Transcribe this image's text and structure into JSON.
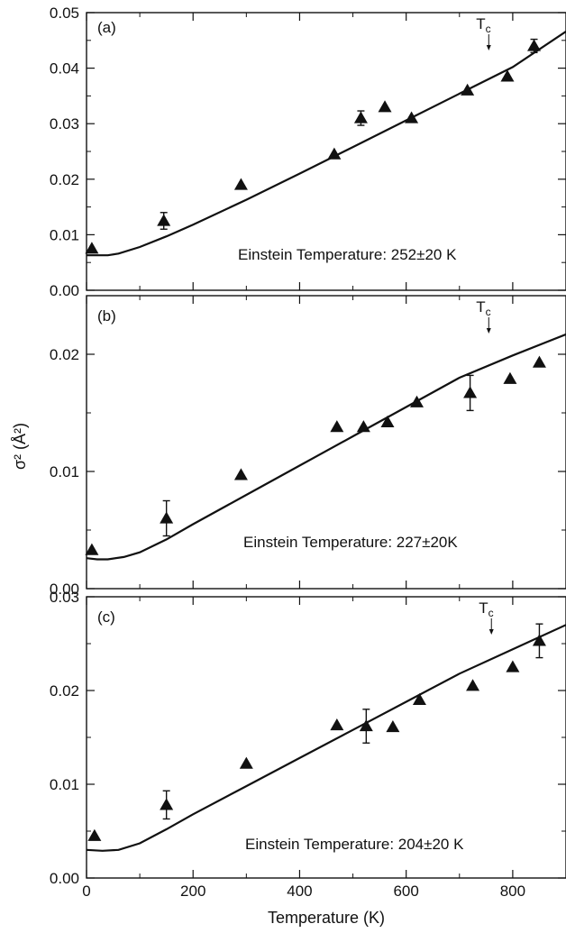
{
  "figure": {
    "xlabel": "Temperature (K)",
    "ylabel": "σ² (Å²)"
  },
  "chart_data": [
    {
      "type": "scatter",
      "panel_label": "(a)",
      "annotation": "Einstein Temperature: 252±20 K",
      "marker_label": "T",
      "marker_sub": "c",
      "marker_x": 755,
      "xlim": [
        0,
        900
      ],
      "ylim": [
        0,
        0.05
      ],
      "x_ticks": [
        0,
        200,
        400,
        600,
        800
      ],
      "y_ticks": [
        0.0,
        0.01,
        0.02,
        0.03,
        0.04,
        0.05
      ],
      "y_tick_labels": [
        "0.00",
        "0.01",
        "0.02",
        "0.03",
        "0.04",
        "0.05"
      ],
      "show_x_tick_labels": false,
      "points": [
        {
          "x": 10,
          "y": 0.0075
        },
        {
          "x": 145,
          "y": 0.0125,
          "err": 0.0015
        },
        {
          "x": 290,
          "y": 0.019
        },
        {
          "x": 465,
          "y": 0.0245
        },
        {
          "x": 515,
          "y": 0.031,
          "err": 0.0013
        },
        {
          "x": 560,
          "y": 0.033
        },
        {
          "x": 610,
          "y": 0.031
        },
        {
          "x": 715,
          "y": 0.036
        },
        {
          "x": 790,
          "y": 0.0385
        },
        {
          "x": 840,
          "y": 0.044,
          "err": 0.0012
        }
      ],
      "fit_line": [
        [
          0,
          0.0063
        ],
        [
          40,
          0.0063
        ],
        [
          60,
          0.0066
        ],
        [
          100,
          0.0078
        ],
        [
          150,
          0.0097
        ],
        [
          200,
          0.0118
        ],
        [
          300,
          0.0163
        ],
        [
          400,
          0.021
        ],
        [
          500,
          0.0258
        ],
        [
          600,
          0.0306
        ],
        [
          700,
          0.0354
        ],
        [
          800,
          0.0402
        ],
        [
          900,
          0.0466
        ]
      ]
    },
    {
      "type": "scatter",
      "panel_label": "(b)",
      "annotation": "Einstein Temperature: 227±20K",
      "marker_label": "T",
      "marker_sub": "c",
      "marker_x": 755,
      "xlim": [
        0,
        900
      ],
      "ylim": [
        0,
        0.025
      ],
      "x_ticks": [
        0,
        200,
        400,
        600,
        800
      ],
      "y_ticks": [
        0.0,
        0.01,
        0.02
      ],
      "y_tick_labels": [
        "0.00",
        "0.01",
        "0.02"
      ],
      "show_x_tick_labels": false,
      "points": [
        {
          "x": 10,
          "y": 0.0033
        },
        {
          "x": 150,
          "y": 0.006,
          "err": 0.0015
        },
        {
          "x": 290,
          "y": 0.0097
        },
        {
          "x": 470,
          "y": 0.0138
        },
        {
          "x": 520,
          "y": 0.0138
        },
        {
          "x": 565,
          "y": 0.0142
        },
        {
          "x": 620,
          "y": 0.0159
        },
        {
          "x": 720,
          "y": 0.0167,
          "err": 0.0015
        },
        {
          "x": 795,
          "y": 0.0179
        },
        {
          "x": 850,
          "y": 0.0193
        }
      ],
      "fit_line": [
        [
          0,
          0.0026
        ],
        [
          20,
          0.0025
        ],
        [
          40,
          0.0025
        ],
        [
          70,
          0.0027
        ],
        [
          100,
          0.0031
        ],
        [
          150,
          0.0042
        ],
        [
          200,
          0.0055
        ],
        [
          300,
          0.008
        ],
        [
          400,
          0.0105
        ],
        [
          500,
          0.013
        ],
        [
          600,
          0.0155
        ],
        [
          700,
          0.018
        ],
        [
          800,
          0.0199
        ],
        [
          900,
          0.0217
        ]
      ]
    },
    {
      "type": "scatter",
      "panel_label": "(c)",
      "annotation": "Einstein Temperature: 204±20 K",
      "marker_label": "T",
      "marker_sub": "c",
      "marker_x": 760,
      "xlim": [
        0,
        900
      ],
      "ylim": [
        0,
        0.03
      ],
      "x_ticks": [
        0,
        200,
        400,
        600,
        800
      ],
      "y_ticks": [
        0.0,
        0.01,
        0.02,
        0.03
      ],
      "y_tick_labels": [
        "0.00",
        "0.01",
        "0.02",
        "0.03"
      ],
      "show_x_tick_labels": true,
      "points": [
        {
          "x": 15,
          "y": 0.0045
        },
        {
          "x": 150,
          "y": 0.0078,
          "err": 0.0015
        },
        {
          "x": 300,
          "y": 0.0122
        },
        {
          "x": 470,
          "y": 0.0163
        },
        {
          "x": 525,
          "y": 0.0162,
          "err": 0.0018
        },
        {
          "x": 575,
          "y": 0.0161
        },
        {
          "x": 625,
          "y": 0.019
        },
        {
          "x": 725,
          "y": 0.0205
        },
        {
          "x": 800,
          "y": 0.0225
        },
        {
          "x": 850,
          "y": 0.0253,
          "err": 0.0018
        }
      ],
      "fit_line": [
        [
          0,
          0.003
        ],
        [
          30,
          0.0029
        ],
        [
          60,
          0.003
        ],
        [
          100,
          0.0037
        ],
        [
          150,
          0.0052
        ],
        [
          200,
          0.0068
        ],
        [
          300,
          0.0098
        ],
        [
          400,
          0.0128
        ],
        [
          500,
          0.0158
        ],
        [
          600,
          0.0188
        ],
        [
          700,
          0.0218
        ],
        [
          800,
          0.0244
        ],
        [
          900,
          0.027
        ]
      ]
    }
  ]
}
